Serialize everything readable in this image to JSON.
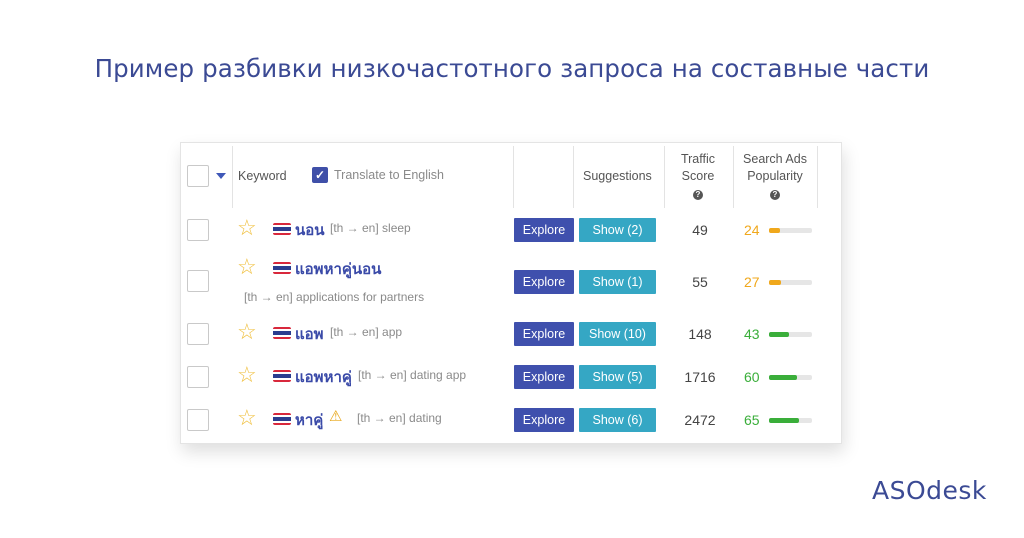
{
  "title": "Пример разбивки низкочастотного запроса на составные части",
  "table": {
    "header": {
      "keyword": "Keyword",
      "translate": "Translate to English",
      "suggestions": "Suggestions",
      "traffic_score_l1": "Traffic",
      "traffic_score_l2": "Score",
      "popularity_l1": "Search Ads",
      "popularity_l2": "Popularity",
      "help_glyph": "?"
    },
    "explore_label": "Explore",
    "rows": [
      {
        "keyword": "นอน",
        "translation": "[th → en] sleep",
        "show": "Show (2)",
        "traffic": "49",
        "popularity": "24",
        "pop_fraction": 0.24,
        "color": "#f0a81c"
      },
      {
        "keyword": "แอพหาคู่นอน",
        "translation": "[th → en] applications for partners",
        "show": "Show (1)",
        "traffic": "55",
        "popularity": "27",
        "pop_fraction": 0.27,
        "color": "#f0a81c"
      },
      {
        "keyword": "แอพ",
        "translation": "[th → en] app",
        "show": "Show (10)",
        "traffic": "148",
        "popularity": "43",
        "pop_fraction": 0.43,
        "color": "#3aae3a"
      },
      {
        "keyword": "แอพหาคู่",
        "translation": "[th → en] dating app",
        "show": "Show (5)",
        "traffic": "1716",
        "popularity": "60",
        "pop_fraction": 0.6,
        "color": "#3aae3a"
      },
      {
        "keyword": "หาคู่",
        "translation": "[th → en] dating",
        "show": "Show (6)",
        "traffic": "2472",
        "popularity": "65",
        "pop_fraction": 0.65,
        "color": "#3aae3a"
      }
    ],
    "icons": {
      "favorite": "star-outline-icon",
      "flag": "thailand-flag-icon",
      "warning": "warning-triangle-icon"
    }
  },
  "logo": "ASOdesk"
}
